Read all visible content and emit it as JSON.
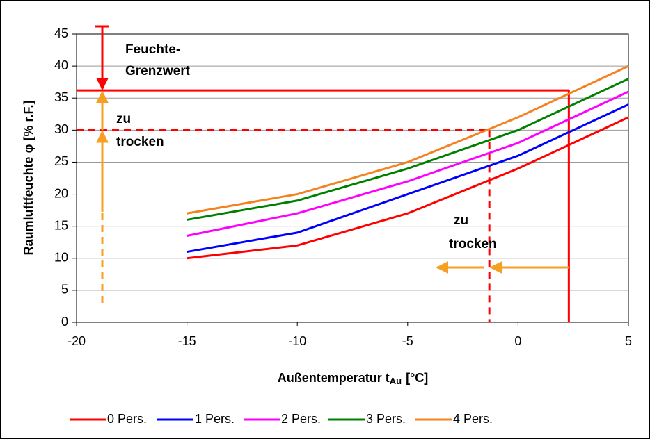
{
  "chart_data": {
    "type": "line",
    "x_label": {
      "text": "Außentemperatur t",
      "subscript": "Au",
      "unit": "[°C]"
    },
    "y_label": "Raumluftfeuchte  φ [% r.F.]",
    "x": [
      -15,
      -10,
      -5,
      0,
      5
    ],
    "series": [
      {
        "name": "0 Pers.",
        "color": "#ff0000",
        "values": [
          10,
          12,
          17,
          24,
          32
        ]
      },
      {
        "name": "1 Pers.",
        "color": "#0000ff",
        "values": [
          11,
          14,
          20,
          26,
          34
        ]
      },
      {
        "name": "2 Pers.",
        "color": "#ff00ff",
        "values": [
          13.5,
          17,
          22,
          28,
          36
        ]
      },
      {
        "name": "3 Pers.",
        "color": "#008000",
        "values": [
          16,
          19,
          24,
          30,
          38
        ]
      },
      {
        "name": "4 Pers.",
        "color": "#f58220",
        "values": [
          17,
          20,
          25,
          32,
          40
        ]
      }
    ],
    "xlim": [
      -20,
      5
    ],
    "xticks": [
      -20,
      -15,
      -10,
      -5,
      0,
      5
    ],
    "ylim": [
      0,
      45
    ],
    "yticks": [
      0,
      5,
      10,
      15,
      20,
      25,
      30,
      35,
      40,
      45
    ],
    "grid": true,
    "legend": "bottom",
    "reference_lines": [
      {
        "x": 2.3,
        "y": 36.2,
        "style": "solid",
        "color": "#ff0000"
      },
      {
        "x": -1.3,
        "y": 30,
        "style": "dashed",
        "color": "#ff0000"
      }
    ],
    "annotations": {
      "limit": [
        "Feuchte-",
        "Grenzwert"
      ],
      "dry_left": [
        "zu",
        "trocken"
      ],
      "dry_bottom": [
        "zu",
        "trocken"
      ],
      "limit_color": "#ff0000",
      "dry_color": "#f5a023"
    }
  }
}
